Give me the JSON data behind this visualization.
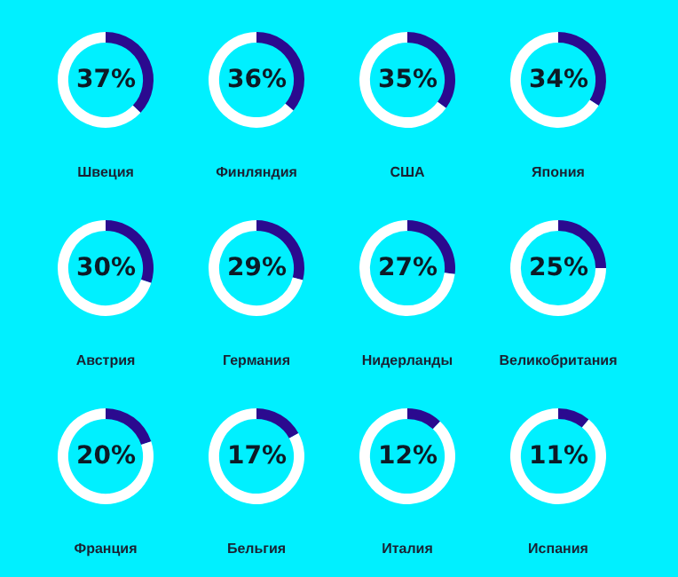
{
  "chart_data": [
    {
      "type": "donut",
      "title": "Швеция",
      "categories": [
        null,
        null
      ],
      "values": [
        37,
        63
      ],
      "colors": [
        "#2b0a8f",
        "#ffffff"
      ],
      "annotations": [
        "37%"
      ]
    },
    {
      "type": "donut",
      "title": "Финляндия",
      "categories": [
        null,
        null
      ],
      "values": [
        36,
        64
      ],
      "colors": [
        "#2b0a8f",
        "#ffffff"
      ],
      "annotations": [
        "36%"
      ]
    },
    {
      "type": "donut",
      "title": "США",
      "categories": [
        null,
        null
      ],
      "values": [
        35,
        65
      ],
      "colors": [
        "#2b0a8f",
        "#ffffff"
      ],
      "annotations": [
        "35%"
      ]
    },
    {
      "type": "donut",
      "title": "Япония",
      "categories": [
        null,
        null
      ],
      "values": [
        34,
        66
      ],
      "colors": [
        "#2b0a8f",
        "#ffffff"
      ],
      "annotations": [
        "34%"
      ]
    },
    {
      "type": "donut",
      "title": "Австрия",
      "categories": [
        null,
        null
      ],
      "values": [
        30,
        70
      ],
      "colors": [
        "#2b0a8f",
        "#ffffff"
      ],
      "annotations": [
        "30%"
      ]
    },
    {
      "type": "donut",
      "title": "Германия",
      "categories": [
        null,
        null
      ],
      "values": [
        29,
        71
      ],
      "colors": [
        "#2b0a8f",
        "#ffffff"
      ],
      "annotations": [
        "29%"
      ]
    },
    {
      "type": "donut",
      "title": "Нидерланды",
      "categories": [
        null,
        null
      ],
      "values": [
        27,
        73
      ],
      "colors": [
        "#2b0a8f",
        "#ffffff"
      ],
      "annotations": [
        "27%"
      ]
    },
    {
      "type": "donut",
      "title": "Великобритания",
      "categories": [
        null,
        null
      ],
      "values": [
        25,
        75
      ],
      "colors": [
        "#2b0a8f",
        "#ffffff"
      ],
      "annotations": [
        "25%"
      ]
    },
    {
      "type": "donut",
      "title": "Франция",
      "categories": [
        null,
        null
      ],
      "values": [
        20,
        80
      ],
      "colors": [
        "#2b0a8f",
        "#ffffff"
      ],
      "annotations": [
        "20%"
      ]
    },
    {
      "type": "donut",
      "title": "Бельгия",
      "categories": [
        null,
        null
      ],
      "values": [
        17,
        83
      ],
      "colors": [
        "#2b0a8f",
        "#ffffff"
      ],
      "annotations": [
        "17%"
      ]
    },
    {
      "type": "donut",
      "title": "Италия",
      "categories": [
        null,
        null
      ],
      "values": [
        12,
        88
      ],
      "colors": [
        "#2b0a8f",
        "#ffffff"
      ],
      "annotations": [
        "12%"
      ]
    },
    {
      "type": "donut",
      "title": "Испания",
      "categories": [
        null,
        null
      ],
      "values": [
        11,
        89
      ],
      "colors": [
        "#2b0a8f",
        "#ffffff"
      ],
      "annotations": [
        "11%"
      ]
    }
  ]
}
